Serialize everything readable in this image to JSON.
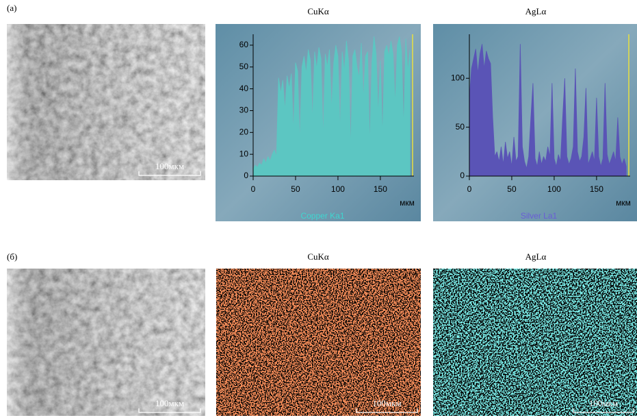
{
  "panel_a": {
    "label": "(a)",
    "scale_bar": "100мкм"
  },
  "panel_b": {
    "label": "(б)",
    "titles": [
      "CuKα",
      "AgLα"
    ],
    "scale_bars": [
      "100мкм",
      "100мкм",
      "100мкм"
    ]
  },
  "chart_data": [
    {
      "type": "area",
      "title": "CuKα",
      "x_unit": "мкм",
      "x": [
        0,
        2.5,
        5,
        7.5,
        10,
        12.5,
        15,
        17.5,
        20,
        22.5,
        25,
        27.5,
        30,
        32.5,
        35,
        37.5,
        40,
        42.5,
        45,
        47.5,
        50,
        52.5,
        55,
        57.5,
        60,
        62.5,
        65,
        67.5,
        70,
        72.5,
        75,
        77.5,
        80,
        82.5,
        85,
        87.5,
        90,
        92.5,
        95,
        97.5,
        100,
        102.5,
        105,
        107.5,
        110,
        112.5,
        115,
        117.5,
        120,
        122.5,
        125,
        127.5,
        130,
        132.5,
        135,
        137.5,
        140,
        142.5,
        145,
        147.5,
        150,
        152.5,
        155,
        157.5,
        160,
        162.5,
        165,
        167.5,
        170,
        172.5,
        175,
        177.5,
        180,
        182.5,
        185
      ],
      "series": [
        {
          "name": "Copper Ka1",
          "color": "#5cc6c2",
          "values": [
            3,
            5,
            4,
            6,
            5,
            8,
            6,
            9,
            7,
            10,
            12,
            9,
            45,
            38,
            44,
            30,
            46,
            40,
            47,
            20,
            52,
            48,
            15,
            50,
            55,
            47,
            58,
            53,
            25,
            57,
            49,
            59,
            54,
            17,
            56,
            50,
            58,
            30,
            52,
            60,
            55,
            20,
            57,
            48,
            62,
            53,
            12,
            55,
            58,
            50,
            45,
            61,
            35,
            55,
            57,
            14,
            52,
            64,
            56,
            28,
            53,
            18,
            57,
            60,
            55,
            62,
            56,
            33,
            60,
            64,
            57,
            22,
            63,
            48,
            58
          ]
        }
      ],
      "xlim": [
        0,
        188
      ],
      "ylim": [
        0,
        65
      ],
      "xticks": [
        0,
        50,
        100,
        150
      ],
      "yticks": [
        0,
        10,
        20,
        30,
        40,
        50,
        60
      ]
    },
    {
      "type": "area",
      "title": "AgLα",
      "x_unit": "мкм",
      "x": [
        0,
        2.5,
        5,
        7.5,
        10,
        12.5,
        15,
        17.5,
        20,
        22.5,
        25,
        27.5,
        30,
        32.5,
        35,
        37.5,
        40,
        42.5,
        45,
        47.5,
        50,
        52.5,
        55,
        57.5,
        60,
        62.5,
        65,
        67.5,
        70,
        72.5,
        75,
        77.5,
        80,
        82.5,
        85,
        87.5,
        90,
        92.5,
        95,
        97.5,
        100,
        102.5,
        105,
        107.5,
        110,
        112.5,
        115,
        117.5,
        120,
        122.5,
        125,
        127.5,
        130,
        132.5,
        135,
        137.5,
        140,
        142.5,
        145,
        147.5,
        150,
        152.5,
        155,
        157.5,
        160,
        162.5,
        165,
        167.5,
        170,
        172.5,
        175,
        177.5,
        180,
        182.5,
        185
      ],
      "series": [
        {
          "name": "Silver La1",
          "color": "#5a54b6",
          "values": [
            80,
            110,
            120,
            130,
            105,
            125,
            135,
            110,
            128,
            120,
            115,
            60,
            20,
            25,
            15,
            30,
            12,
            35,
            18,
            25,
            10,
            40,
            15,
            20,
            135,
            30,
            15,
            8,
            20,
            60,
            95,
            18,
            10,
            25,
            12,
            20,
            15,
            30,
            20,
            95,
            18,
            10,
            22,
            15,
            60,
            100,
            20,
            12,
            18,
            30,
            110,
            25,
            15,
            20,
            40,
            90,
            12,
            18,
            25,
            15,
            80,
            20,
            10,
            18,
            95,
            22,
            12,
            18,
            25,
            15,
            60,
            20,
            12,
            18,
            10
          ]
        }
      ],
      "xlim": [
        0,
        188
      ],
      "ylim": [
        0,
        145
      ],
      "xticks": [
        0,
        50,
        100,
        150
      ],
      "yticks": [
        0,
        50,
        100
      ]
    }
  ]
}
